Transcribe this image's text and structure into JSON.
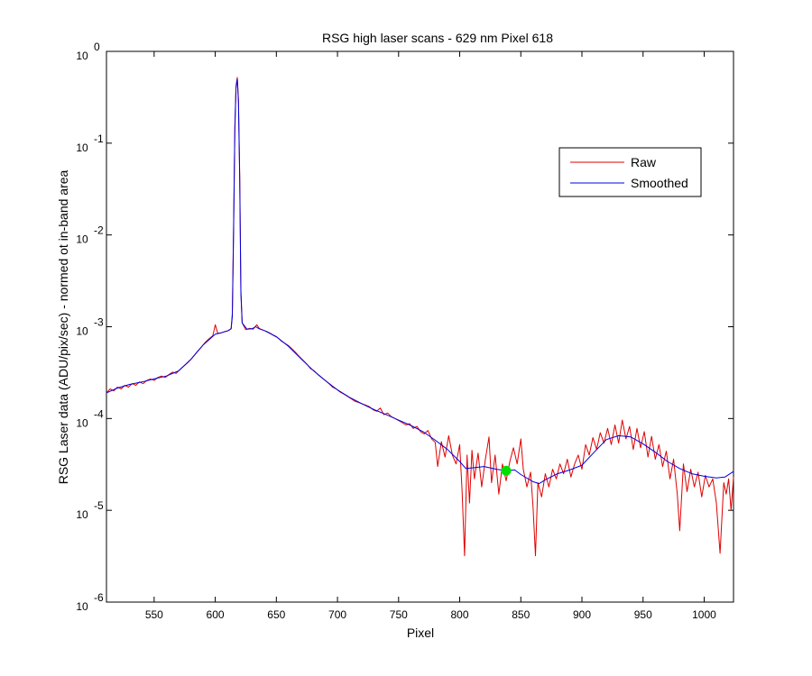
{
  "chart_data": {
    "type": "line",
    "title": "RSG high laser scans  - 629 nm    Pixel 618",
    "xlabel": "Pixel",
    "ylabel": "RSG Laser data (ADU/pix/sec) - normed ot in-band area",
    "xlim": [
      511,
      1024
    ],
    "ylim": [
      1e-06,
      1
    ],
    "yscale": "log",
    "x_ticks": [
      550,
      600,
      650,
      700,
      750,
      800,
      850,
      900,
      950,
      1000
    ],
    "y_ticks": [
      {
        "value": 1,
        "base": "10",
        "exp": "0"
      },
      {
        "value": 0.1,
        "base": "10",
        "exp": "-1"
      },
      {
        "value": 0.01,
        "base": "10",
        "exp": "-2"
      },
      {
        "value": 0.001,
        "base": "10",
        "exp": "-3"
      },
      {
        "value": 0.0001,
        "base": "10",
        "exp": "-4"
      },
      {
        "value": 1e-05,
        "base": "10",
        "exp": "-5"
      },
      {
        "value": 1e-06,
        "base": "10",
        "exp": "-6"
      }
    ],
    "grid": false,
    "legend_position": "top-right",
    "series": [
      {
        "name": "Raw",
        "color": "#e00000",
        "points": [
          [
            511,
            0.00019
          ],
          [
            514,
            0.00021
          ],
          [
            517,
            0.0002
          ],
          [
            520,
            0.00022
          ],
          [
            523,
            0.00021
          ],
          [
            526,
            0.00023
          ],
          [
            529,
            0.00022
          ],
          [
            532,
            0.00024
          ],
          [
            535,
            0.00023
          ],
          [
            538,
            0.00025
          ],
          [
            541,
            0.00024
          ],
          [
            544,
            0.00026
          ],
          [
            547,
            0.00027
          ],
          [
            550,
            0.00026
          ],
          [
            553,
            0.00028
          ],
          [
            556,
            0.00029
          ],
          [
            559,
            0.00028
          ],
          [
            562,
            0.0003
          ],
          [
            565,
            0.00032
          ],
          [
            568,
            0.00031
          ],
          [
            571,
            0.00034
          ],
          [
            574,
            0.00037
          ],
          [
            577,
            0.0004
          ],
          [
            580,
            0.00044
          ],
          [
            583,
            0.00049
          ],
          [
            586,
            0.00055
          ],
          [
            589,
            0.00061
          ],
          [
            592,
            0.00068
          ],
          [
            595,
            0.00074
          ],
          [
            598,
            0.0008
          ],
          [
            600,
            0.00105
          ],
          [
            602,
            0.00085
          ],
          [
            605,
            0.00086
          ],
          [
            608,
            0.00089
          ],
          [
            611,
            0.00091
          ],
          [
            613,
            0.00096
          ],
          [
            614,
            0.0014
          ],
          [
            615,
            0.012
          ],
          [
            616,
            0.15
          ],
          [
            617,
            0.42
          ],
          [
            618,
            0.52
          ],
          [
            619,
            0.3
          ],
          [
            620,
            0.045
          ],
          [
            621,
            0.0025
          ],
          [
            622,
            0.0011
          ],
          [
            625,
            0.00093
          ],
          [
            628,
            0.00096
          ],
          [
            631,
            0.00094
          ],
          [
            634,
            0.00105
          ],
          [
            636,
            0.00096
          ],
          [
            639,
            0.00092
          ],
          [
            642,
            0.00089
          ],
          [
            645,
            0.00085
          ],
          [
            648,
            0.0008
          ],
          [
            651,
            0.00076
          ],
          [
            654,
            0.0007
          ],
          [
            657,
            0.00066
          ],
          [
            660,
            0.00062
          ],
          [
            663,
            0.00057
          ],
          [
            666,
            0.00052
          ],
          [
            669,
            0.00047
          ],
          [
            672,
            0.00043
          ],
          [
            675,
            0.00039
          ],
          [
            678,
            0.00035
          ],
          [
            681,
            0.00033
          ],
          [
            684,
            0.0003
          ],
          [
            687,
            0.00028
          ],
          [
            690,
            0.00026
          ],
          [
            693,
            0.00024
          ],
          [
            696,
            0.00022
          ],
          [
            699,
            0.00021
          ],
          [
            702,
            0.000195
          ],
          [
            705,
            0.000185
          ],
          [
            708,
            0.000175
          ],
          [
            711,
            0.000165
          ],
          [
            714,
            0.000155
          ],
          [
            717,
            0.00015
          ],
          [
            720,
            0.000145
          ],
          [
            723,
            0.00014
          ],
          [
            726,
            0.000135
          ],
          [
            729,
            0.000125
          ],
          [
            732,
            0.00012
          ],
          [
            735,
            0.00013
          ],
          [
            738,
            0.00011
          ],
          [
            741,
            0.000115
          ],
          [
            744,
            0.000105
          ],
          [
            747,
            0.0001
          ],
          [
            750,
            9.5e-05
          ],
          [
            753,
            9e-05
          ],
          [
            756,
            8.5e-05
          ],
          [
            759,
            8.8e-05
          ],
          [
            762,
            7.8e-05
          ],
          [
            765,
            8.2e-05
          ],
          [
            768,
            7.2e-05
          ],
          [
            771,
            6.8e-05
          ],
          [
            774,
            7.4e-05
          ],
          [
            777,
            6e-05
          ],
          [
            780,
            5.5e-05
          ],
          [
            782,
            3e-05
          ],
          [
            785,
            5.6e-05
          ],
          [
            788,
            3.8e-05
          ],
          [
            791,
            6.5e-05
          ],
          [
            794,
            4e-05
          ],
          [
            797,
            3.2e-05
          ],
          [
            800,
            5.2e-05
          ],
          [
            802,
            1.6e-05
          ],
          [
            804,
            3.2e-06
          ],
          [
            806,
            4e-05
          ],
          [
            808,
            1.2e-05
          ],
          [
            810,
            4.5e-05
          ],
          [
            812,
            2.2e-05
          ],
          [
            815,
            4.2e-05
          ],
          [
            818,
            1.8e-05
          ],
          [
            821,
            3.6e-05
          ],
          [
            824,
            6.3e-05
          ],
          [
            826,
            2e-05
          ],
          [
            829,
            4e-05
          ],
          [
            832,
            1.5e-05
          ],
          [
            835,
            3.2e-05
          ],
          [
            838,
            2.1e-05
          ],
          [
            841,
            3.4e-05
          ],
          [
            844,
            4.8e-05
          ],
          [
            847,
            3.2e-05
          ],
          [
            850,
            6e-05
          ],
          [
            852,
            2.8e-05
          ],
          [
            855,
            1.8e-05
          ],
          [
            858,
            2.6e-05
          ],
          [
            860,
            1.1e-05
          ],
          [
            862,
            3.2e-06
          ],
          [
            864,
            2e-05
          ],
          [
            867,
            1.4e-05
          ],
          [
            870,
            2.5e-05
          ],
          [
            873,
            1.8e-05
          ],
          [
            876,
            2.8e-05
          ],
          [
            879,
            2.2e-05
          ],
          [
            882,
            3.2e-05
          ],
          [
            885,
            2.5e-05
          ],
          [
            888,
            3.6e-05
          ],
          [
            891,
            2.3e-05
          ],
          [
            894,
            3.2e-05
          ],
          [
            897,
            4e-05
          ],
          [
            900,
            2.8e-05
          ],
          [
            903,
            5.2e-05
          ],
          [
            906,
            4e-05
          ],
          [
            909,
            6.2e-05
          ],
          [
            912,
            4.6e-05
          ],
          [
            915,
            7e-05
          ],
          [
            918,
            5.4e-05
          ],
          [
            921,
            7.8e-05
          ],
          [
            924,
            5.2e-05
          ],
          [
            927,
            8.5e-05
          ],
          [
            930,
            5.4e-05
          ],
          [
            933,
            9.6e-05
          ],
          [
            936,
            6e-05
          ],
          [
            939,
            8.2e-05
          ],
          [
            942,
            4.6e-05
          ],
          [
            945,
            7.8e-05
          ],
          [
            948,
            4.8e-05
          ],
          [
            951,
            7.2e-05
          ],
          [
            954,
            3.8e-05
          ],
          [
            957,
            6.4e-05
          ],
          [
            960,
            3.6e-05
          ],
          [
            963,
            5.2e-05
          ],
          [
            966,
            3e-05
          ],
          [
            969,
            4.4e-05
          ],
          [
            972,
            2.2e-05
          ],
          [
            975,
            3.6e-05
          ],
          [
            978,
            1.5e-05
          ],
          [
            980,
            6e-06
          ],
          [
            983,
            3.2e-05
          ],
          [
            986,
            1.6e-05
          ],
          [
            989,
            2.8e-05
          ],
          [
            992,
            1.8e-05
          ],
          [
            995,
            2.6e-05
          ],
          [
            998,
            1.4e-05
          ],
          [
            1001,
            2.4e-05
          ],
          [
            1004,
            1.8e-05
          ],
          [
            1007,
            2.2e-05
          ],
          [
            1010,
            1.2e-05
          ],
          [
            1013,
            3.4e-06
          ],
          [
            1016,
            2e-05
          ],
          [
            1018,
            1.5e-05
          ],
          [
            1020,
            2.2e-05
          ],
          [
            1022,
            1e-05
          ],
          [
            1024,
            2.3e-05
          ]
        ]
      },
      {
        "name": "Smoothed",
        "color": "#0000e0",
        "points": [
          [
            511,
            0.00019
          ],
          [
            520,
            0.000215
          ],
          [
            530,
            0.000235
          ],
          [
            540,
            0.00025
          ],
          [
            550,
            0.00027
          ],
          [
            560,
            0.00029
          ],
          [
            570,
            0.00033
          ],
          [
            580,
            0.00044
          ],
          [
            590,
            0.00063
          ],
          [
            600,
            0.00083
          ],
          [
            605,
            0.00086
          ],
          [
            610,
            0.0009
          ],
          [
            613,
            0.00095
          ],
          [
            614,
            0.0013
          ],
          [
            615,
            0.011
          ],
          [
            616,
            0.14
          ],
          [
            617,
            0.4
          ],
          [
            618,
            0.5
          ],
          [
            619,
            0.28
          ],
          [
            620,
            0.04
          ],
          [
            621,
            0.0023
          ],
          [
            622,
            0.0011
          ],
          [
            626,
            0.00094
          ],
          [
            630,
            0.00095
          ],
          [
            633,
            0.001
          ],
          [
            636,
            0.00095
          ],
          [
            640,
            0.00091
          ],
          [
            650,
            0.00078
          ],
          [
            660,
            0.00061
          ],
          [
            670,
            0.00045
          ],
          [
            680,
            0.000335
          ],
          [
            690,
            0.00026
          ],
          [
            700,
            0.000205
          ],
          [
            710,
            0.00017
          ],
          [
            720,
            0.000145
          ],
          [
            730,
            0.000125
          ],
          [
            740,
            0.00011
          ],
          [
            750,
            9.6e-05
          ],
          [
            760,
            8.4e-05
          ],
          [
            770,
            7.2e-05
          ],
          [
            780,
            5.8e-05
          ],
          [
            790,
            4.6e-05
          ],
          [
            800,
            3.4e-05
          ],
          [
            805,
            2.85e-05
          ],
          [
            810,
            2.9e-05
          ],
          [
            820,
            3e-05
          ],
          [
            830,
            2.8e-05
          ],
          [
            838,
            2.7e-05
          ],
          [
            845,
            2.75e-05
          ],
          [
            850,
            2.45e-05
          ],
          [
            860,
            2.05e-05
          ],
          [
            865,
            1.95e-05
          ],
          [
            870,
            2.15e-05
          ],
          [
            880,
            2.5e-05
          ],
          [
            890,
            2.75e-05
          ],
          [
            900,
            3.1e-05
          ],
          [
            910,
            4.3e-05
          ],
          [
            920,
            5.9e-05
          ],
          [
            930,
            6.5e-05
          ],
          [
            940,
            6.3e-05
          ],
          [
            950,
            5.3e-05
          ],
          [
            960,
            4.3e-05
          ],
          [
            970,
            3.4e-05
          ],
          [
            980,
            2.85e-05
          ],
          [
            990,
            2.5e-05
          ],
          [
            1000,
            2.35e-05
          ],
          [
            1010,
            2.25e-05
          ],
          [
            1017,
            2.3e-05
          ],
          [
            1024,
            2.65e-05
          ]
        ]
      }
    ],
    "marker": {
      "x": 838,
      "y": 2.7e-05,
      "color": "#00e000"
    }
  }
}
